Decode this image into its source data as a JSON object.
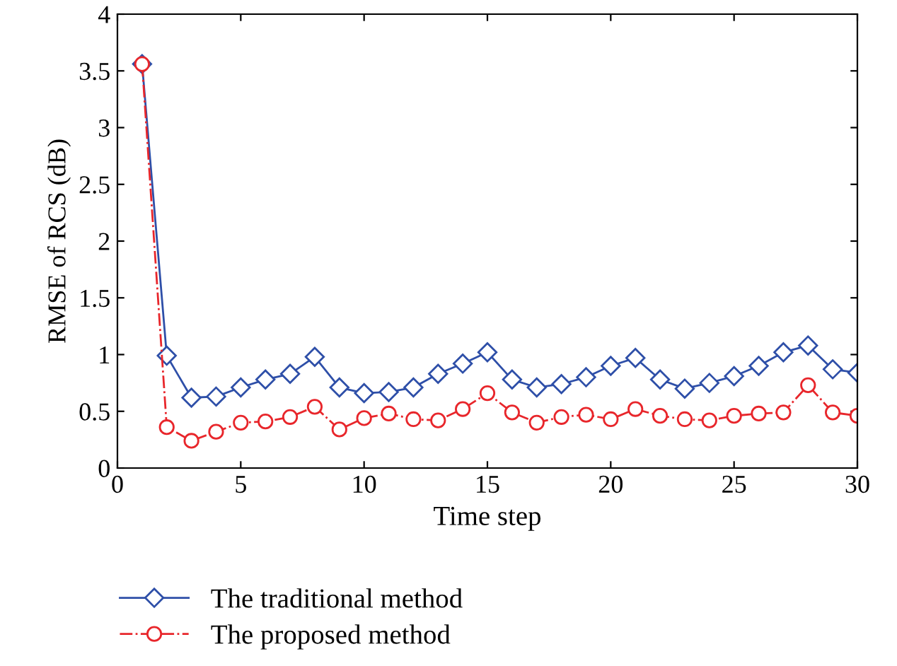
{
  "chart_data": {
    "type": "line",
    "xlabel": "Time step",
    "ylabel": "RMSE of RCS (dB)",
    "x": [
      1,
      2,
      3,
      4,
      5,
      6,
      7,
      8,
      9,
      10,
      11,
      12,
      13,
      14,
      15,
      16,
      17,
      18,
      19,
      20,
      21,
      22,
      23,
      24,
      25,
      26,
      27,
      28,
      29,
      30
    ],
    "series": [
      {
        "name": "The traditional method",
        "color": "#2e4fa8",
        "marker": "diamond",
        "line_style": "solid",
        "values": [
          3.56,
          0.99,
          0.62,
          0.63,
          0.71,
          0.78,
          0.83,
          0.98,
          0.71,
          0.66,
          0.67,
          0.71,
          0.83,
          0.92,
          1.02,
          0.78,
          0.71,
          0.74,
          0.8,
          0.9,
          0.97,
          0.78,
          0.7,
          0.75,
          0.81,
          0.9,
          1.02,
          1.08,
          0.87,
          0.84
        ]
      },
      {
        "name": "The proposed method",
        "color": "#e8262b",
        "marker": "circle",
        "line_style": "dashdot",
        "values": [
          3.56,
          0.36,
          0.24,
          0.32,
          0.4,
          0.41,
          0.45,
          0.54,
          0.34,
          0.44,
          0.48,
          0.43,
          0.42,
          0.52,
          0.66,
          0.49,
          0.4,
          0.45,
          0.47,
          0.43,
          0.52,
          0.46,
          0.43,
          0.42,
          0.46,
          0.48,
          0.49,
          0.73,
          0.49,
          0.46
        ]
      }
    ],
    "xlim": [
      0,
      30
    ],
    "xticks": [
      0,
      5,
      10,
      15,
      20,
      25,
      30
    ],
    "ylim": [
      0,
      4
    ],
    "yticks": [
      0,
      {
        "value": 0.5,
        "label": "0.5"
      },
      1,
      {
        "value": 1.5,
        "label": "1.5"
      },
      2,
      {
        "value": 2.5,
        "label": "2.5"
      },
      3,
      {
        "value": 3.5,
        "label": "3.5"
      },
      4
    ],
    "grid": false,
    "legend": "bottom left"
  }
}
